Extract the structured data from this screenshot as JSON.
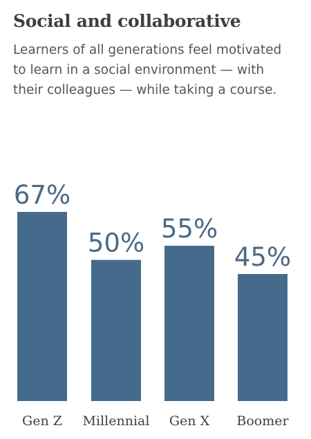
{
  "header": {
    "title": "Social and collaborative",
    "subtitle": "Learners of all generations feel motivated to learn in a social environment — with their colleagues — while taking a course."
  },
  "colors": {
    "bar": "#446b8c",
    "value_label": "#4c6a85",
    "category_label": "#404040"
  },
  "chart_data": {
    "type": "bar",
    "title": "Social and collaborative",
    "categories": [
      "Gen Z",
      "Millennial",
      "Gen X",
      "Boomer"
    ],
    "values": [
      67,
      50,
      55,
      45
    ],
    "value_labels": [
      "67%",
      "50%",
      "55%",
      "45%"
    ],
    "xlabel": "",
    "ylabel": "",
    "ylim": [
      0,
      67
    ],
    "grid": false,
    "legend": "none"
  }
}
